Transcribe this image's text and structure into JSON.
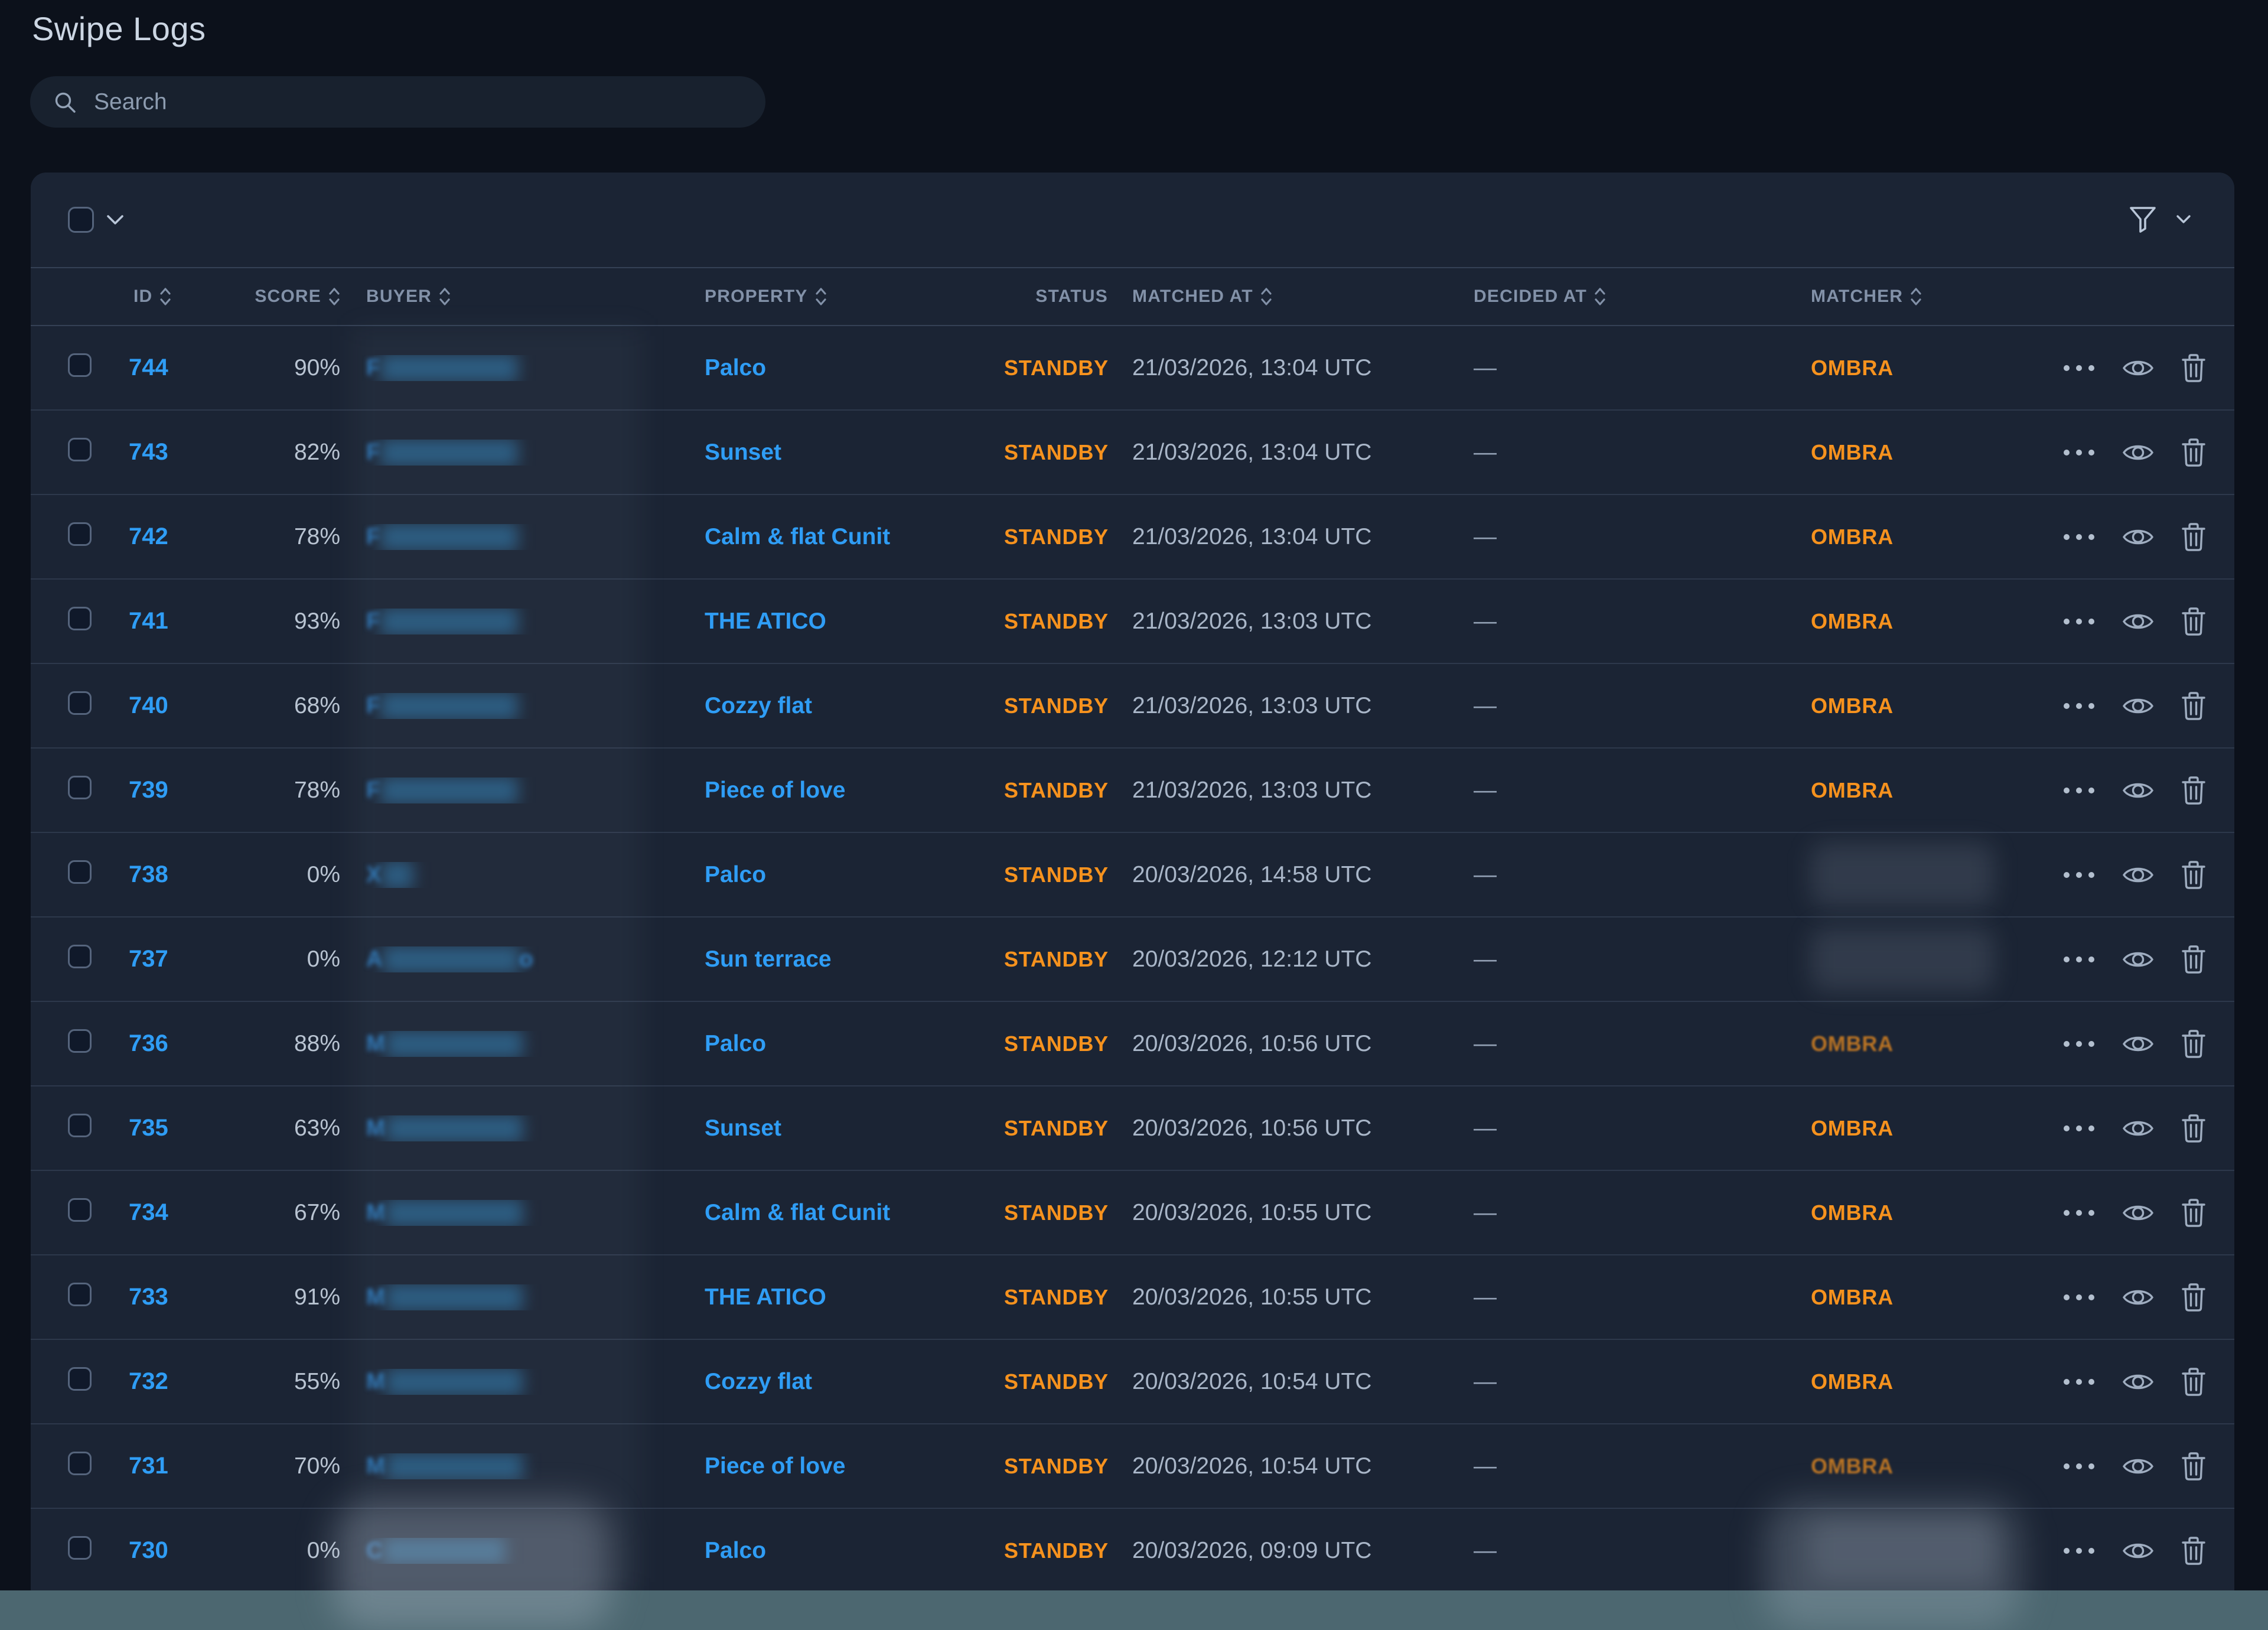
{
  "page": {
    "title": "Swipe Logs"
  },
  "search": {
    "placeholder": "Search"
  },
  "toolbar": {
    "select_all_checked": false,
    "icons": [
      "select-all-checkbox",
      "chevron-down-icon",
      "filter-funnel-icon",
      "chevron-down-icon"
    ]
  },
  "table": {
    "headers": [
      {
        "key": "id",
        "label": "ID",
        "sortable": true
      },
      {
        "key": "score",
        "label": "SCORE",
        "sortable": true
      },
      {
        "key": "buyer",
        "label": "BUYER",
        "sortable": true
      },
      {
        "key": "property",
        "label": "PROPERTY",
        "sortable": true
      },
      {
        "key": "status",
        "label": "STATUS",
        "sortable": false
      },
      {
        "key": "matched_at",
        "label": "MATCHED AT",
        "sortable": true
      },
      {
        "key": "decided_at",
        "label": "DECIDED AT",
        "sortable": true
      },
      {
        "key": "matcher",
        "label": "MATCHER",
        "sortable": true
      }
    ],
    "row_action_icons": [
      "more-actions-icon",
      "view-icon",
      "delete-icon"
    ],
    "rows": [
      {
        "id": "744",
        "score": "90%",
        "buyer": {
          "masked": true,
          "hint": "F",
          "mask": "█████████",
          "tail": ""
        },
        "property": "Palco",
        "status": "STANDBY",
        "matched_at": "21/03/2026, 13:04 UTC",
        "decided_at": "—",
        "matcher": {
          "masked": false,
          "label": "OMBRA",
          "dim": false
        }
      },
      {
        "id": "743",
        "score": "82%",
        "buyer": {
          "masked": true,
          "hint": "F",
          "mask": "█████████",
          "tail": ""
        },
        "property": "Sunset",
        "status": "STANDBY",
        "matched_at": "21/03/2026, 13:04 UTC",
        "decided_at": "—",
        "matcher": {
          "masked": false,
          "label": "OMBRA",
          "dim": false
        }
      },
      {
        "id": "742",
        "score": "78%",
        "buyer": {
          "masked": true,
          "hint": "F",
          "mask": "█████████",
          "tail": ""
        },
        "property": "Calm & flat Cunit",
        "status": "STANDBY",
        "matched_at": "21/03/2026, 13:04 UTC",
        "decided_at": "—",
        "matcher": {
          "masked": false,
          "label": "OMBRA",
          "dim": false
        }
      },
      {
        "id": "741",
        "score": "93%",
        "buyer": {
          "masked": true,
          "hint": "F",
          "mask": "█████████",
          "tail": ""
        },
        "property": "THE ATICO",
        "status": "STANDBY",
        "matched_at": "21/03/2026, 13:03 UTC",
        "decided_at": "—",
        "matcher": {
          "masked": false,
          "label": "OMBRA",
          "dim": false
        }
      },
      {
        "id": "740",
        "score": "68%",
        "buyer": {
          "masked": true,
          "hint": "F",
          "mask": "█████████",
          "tail": ""
        },
        "property": "Cozzy flat",
        "status": "STANDBY",
        "matched_at": "21/03/2026, 13:03 UTC",
        "decided_at": "—",
        "matcher": {
          "masked": false,
          "label": "OMBRA",
          "dim": false
        }
      },
      {
        "id": "739",
        "score": "78%",
        "buyer": {
          "masked": true,
          "hint": "F",
          "mask": "█████████",
          "tail": ""
        },
        "property": "Piece of love",
        "status": "STANDBY",
        "matched_at": "21/03/2026, 13:03 UTC",
        "decided_at": "—",
        "matcher": {
          "masked": false,
          "label": "OMBRA",
          "dim": false
        }
      },
      {
        "id": "738",
        "score": "0%",
        "buyer": {
          "masked": true,
          "hint": "X",
          "mask": "██",
          "tail": ""
        },
        "property": "Palco",
        "status": "STANDBY",
        "matched_at": "20/03/2026, 14:58 UTC",
        "decided_at": "—",
        "matcher": {
          "masked": true,
          "label": "",
          "dim": false
        }
      },
      {
        "id": "737",
        "score": "0%",
        "buyer": {
          "masked": true,
          "hint": "A",
          "mask": "█████████",
          "tail": "o"
        },
        "property": "Sun terrace",
        "status": "STANDBY",
        "matched_at": "20/03/2026, 12:12 UTC",
        "decided_at": "—",
        "matcher": {
          "masked": true,
          "label": "",
          "dim": false
        }
      },
      {
        "id": "736",
        "score": "88%",
        "buyer": {
          "masked": true,
          "hint": "M",
          "mask": "█████████",
          "tail": ""
        },
        "property": "Palco",
        "status": "STANDBY",
        "matched_at": "20/03/2026, 10:56 UTC",
        "decided_at": "—",
        "matcher": {
          "masked": false,
          "label": "OMBRA",
          "dim": true
        }
      },
      {
        "id": "735",
        "score": "63%",
        "buyer": {
          "masked": true,
          "hint": "M",
          "mask": "█████████",
          "tail": ""
        },
        "property": "Sunset",
        "status": "STANDBY",
        "matched_at": "20/03/2026, 10:56 UTC",
        "decided_at": "—",
        "matcher": {
          "masked": false,
          "label": "OMBRA",
          "dim": false
        }
      },
      {
        "id": "734",
        "score": "67%",
        "buyer": {
          "masked": true,
          "hint": "M",
          "mask": "█████████",
          "tail": ""
        },
        "property": "Calm & flat Cunit",
        "status": "STANDBY",
        "matched_at": "20/03/2026, 10:55 UTC",
        "decided_at": "—",
        "matcher": {
          "masked": false,
          "label": "OMBRA",
          "dim": false
        }
      },
      {
        "id": "733",
        "score": "91%",
        "buyer": {
          "masked": true,
          "hint": "M",
          "mask": "█████████",
          "tail": ""
        },
        "property": "THE ATICO",
        "status": "STANDBY",
        "matched_at": "20/03/2026, 10:55 UTC",
        "decided_at": "—",
        "matcher": {
          "masked": false,
          "label": "OMBRA",
          "dim": false
        }
      },
      {
        "id": "732",
        "score": "55%",
        "buyer": {
          "masked": true,
          "hint": "M",
          "mask": "█████████",
          "tail": ""
        },
        "property": "Cozzy flat",
        "status": "STANDBY",
        "matched_at": "20/03/2026, 10:54 UTC",
        "decided_at": "—",
        "matcher": {
          "masked": false,
          "label": "OMBRA",
          "dim": false
        }
      },
      {
        "id": "731",
        "score": "70%",
        "buyer": {
          "masked": true,
          "hint": "M",
          "mask": "█████████",
          "tail": ""
        },
        "property": "Piece of love",
        "status": "STANDBY",
        "matched_at": "20/03/2026, 10:54 UTC",
        "decided_at": "—",
        "matcher": {
          "masked": false,
          "label": "OMBRA",
          "dim": true
        }
      },
      {
        "id": "730",
        "score": "0%",
        "buyer": {
          "masked": true,
          "hint": "C",
          "mask": "████████",
          "tail": ""
        },
        "property": "Palco",
        "status": "STANDBY",
        "matched_at": "20/03/2026, 09:09 UTC",
        "decided_at": "—",
        "matcher": {
          "masked": true,
          "label": "",
          "dim": false
        }
      }
    ]
  },
  "colors": {
    "page_background": "#0c111b",
    "card_background": "#1b2434",
    "accent_blue": "#2f9df5",
    "accent_orange": "#f6921e",
    "text_gray": "#a9b6c8",
    "header_gray": "#8291a8",
    "teal_bottom_bar": "#4c6770"
  }
}
